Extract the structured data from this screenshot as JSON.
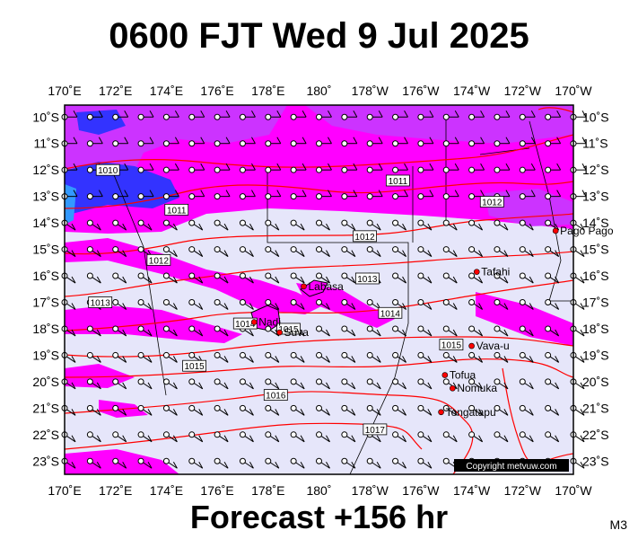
{
  "header": {
    "title": "0600 FJT Wed 9 Jul 2025"
  },
  "footer": {
    "forecast": "Forecast +156 hr",
    "model_code": "M3"
  },
  "axes": {
    "lon_labels": [
      "170˚E",
      "172˚E",
      "174˚E",
      "176˚E",
      "178˚E",
      "180˚",
      "178˚W",
      "176˚W",
      "174˚W",
      "172˚W",
      "170˚W"
    ],
    "lat_labels": [
      "10˚S",
      "11˚S",
      "12˚S",
      "13˚S",
      "14˚S",
      "15˚S",
      "16˚S",
      "17˚S",
      "18˚S",
      "19˚S",
      "20˚S",
      "21˚S",
      "22˚S",
      "23˚S"
    ]
  },
  "places": [
    {
      "name": "Pago Pago",
      "lon": 189.3,
      "lat": -14.3
    },
    {
      "name": "Tafahi",
      "lon": 186.2,
      "lat": -15.85
    },
    {
      "name": "Labasa",
      "lon": 179.4,
      "lat": -16.4
    },
    {
      "name": "Nadi",
      "lon": 177.45,
      "lat": -17.75
    },
    {
      "name": "Suva",
      "lon": 178.45,
      "lat": -18.14
    },
    {
      "name": "Vava-u",
      "lon": 186.0,
      "lat": -18.65
    },
    {
      "name": "Tofua",
      "lon": 184.95,
      "lat": -19.75
    },
    {
      "name": "Nomuka",
      "lon": 185.25,
      "lat": -20.25
    },
    {
      "name": "Tongatapu",
      "lon": 184.8,
      "lat": -21.15
    }
  ],
  "isobars": [
    {
      "label": "1010",
      "lon": 171.7,
      "lat": -12.0
    },
    {
      "label": "1011",
      "lon": 174.4,
      "lat": -13.5
    },
    {
      "label": "1011",
      "lon": 183.1,
      "lat": -12.4
    },
    {
      "label": "1012",
      "lon": 173.7,
      "lat": -15.4
    },
    {
      "label": "1012",
      "lon": 181.8,
      "lat": -14.5
    },
    {
      "label": "1012",
      "lon": 186.8,
      "lat": -13.2
    },
    {
      "label": "1013",
      "lon": 171.4,
      "lat": -17.0
    },
    {
      "label": "1013",
      "lon": 181.9,
      "lat": -16.1
    },
    {
      "label": "1014",
      "lon": 177.1,
      "lat": -17.8
    },
    {
      "label": "1014",
      "lon": 182.8,
      "lat": -17.4
    },
    {
      "label": "1015",
      "lon": 178.8,
      "lat": -18.0
    },
    {
      "label": "1015",
      "lon": 175.1,
      "lat": -19.4
    },
    {
      "label": "1015",
      "lon": 185.2,
      "lat": -18.6
    },
    {
      "label": "1016",
      "lon": 178.3,
      "lat": -20.5
    },
    {
      "label": "1017",
      "lon": 182.2,
      "lat": -21.8
    }
  ],
  "copyright": "Copyright metvuw.com",
  "colors": {
    "background": "#e6e6fa",
    "rain_light": "#ff00ff",
    "rain_medium": "#cc33ff",
    "rain_heavy": "#3333ff",
    "isobar": "#ff0000",
    "coast": "#000000"
  }
}
